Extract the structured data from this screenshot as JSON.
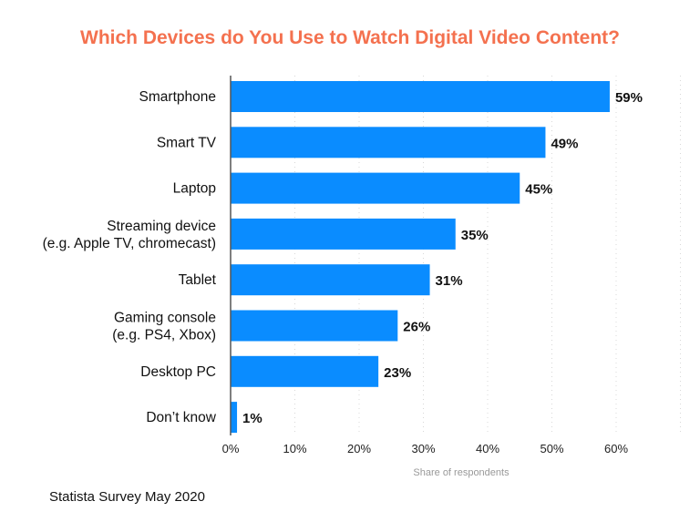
{
  "chart_data": {
    "type": "bar",
    "orientation": "horizontal",
    "title": "Which Devices do You Use to Watch Digital Video Content?",
    "categories": [
      "Smartphone",
      "Smart TV",
      "Laptop",
      "Streaming device\n(e.g. Apple TV, chromecast)",
      "Tablet",
      "Gaming console\n(e.g. PS4, Xbox)",
      "Desktop PC",
      "Don’t know"
    ],
    "values": [
      59,
      49,
      45,
      35,
      31,
      26,
      23,
      1
    ],
    "data_labels": [
      "59%",
      "49%",
      "45%",
      "35%",
      "31%",
      "26%",
      "23%",
      "1%"
    ],
    "xlabel": "Share of respondents",
    "ylabel": "",
    "xlim": [
      0,
      70
    ],
    "xticks": [
      0,
      10,
      20,
      30,
      40,
      50,
      60
    ],
    "xtick_labels": [
      "0%",
      "10%",
      "20%",
      "30%",
      "40%",
      "50%",
      "60%"
    ],
    "grid": "vertical dotted",
    "bar_color": "#0a8cff",
    "title_color": "#f4714f"
  },
  "source": "Statista Survey May 2020"
}
